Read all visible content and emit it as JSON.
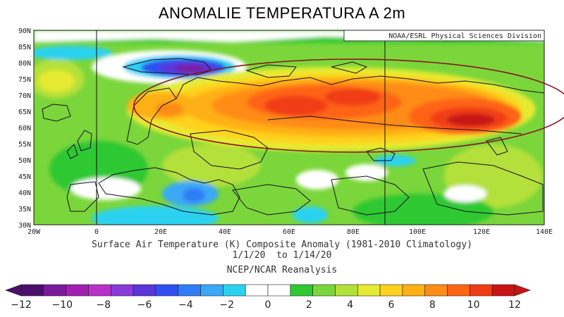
{
  "title": "ANOMALIE TEMPERATURA A 2m",
  "credit": "NOAA/ESRL Physical Sciences Division",
  "map": {
    "lat_labels": [
      "90N",
      "85N",
      "80N",
      "75N",
      "70N",
      "65N",
      "60N",
      "55N",
      "50N",
      "45N",
      "40N",
      "35N",
      "30N"
    ],
    "lon_labels": [
      "20W",
      "0",
      "20E",
      "40E",
      "60E",
      "80E",
      "100E",
      "120E",
      "140E"
    ],
    "reference_meridians": [
      "0",
      "90E"
    ],
    "highlight": "ellipse around the warm anomaly over northern Eurasia"
  },
  "caption": {
    "line1": "Surface Air Temperature (K) Composite Anomaly (1981-2010 Climatology)",
    "line2": "1/1/20  to 1/14/20",
    "line3": "NCEP/NCAR Reanalysis"
  },
  "colorbar": {
    "labels": [
      "−12",
      "−10",
      "−8",
      "−6",
      "−4",
      "−2",
      "0",
      "2",
      "4",
      "6",
      "8",
      "10",
      "12"
    ],
    "colors": [
      "#4a0f6b",
      "#7a1a9a",
      "#a01fb0",
      "#b832c8",
      "#8a3ad8",
      "#5a35d8",
      "#2f4ff0",
      "#2f7df5",
      "#3aa8f5",
      "#2ad2f0",
      "#ffffff",
      "#ffffff",
      "#2fc832",
      "#7ad63a",
      "#b4e03a",
      "#e6ea30",
      "#ffd21e",
      "#ffb014",
      "#ff8c14",
      "#ff6414",
      "#f03c14",
      "#c81414"
    ]
  }
}
